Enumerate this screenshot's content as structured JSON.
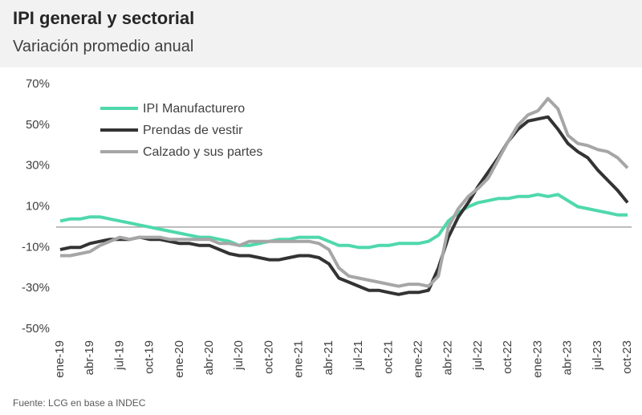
{
  "chart_data": {
    "type": "line",
    "title": "IPI general y sectorial",
    "subtitle": "Variación promedio anual",
    "source": "Fuente: LCG en base a INDEC",
    "categories": [
      "ene-19",
      null,
      null,
      "abr-19",
      null,
      null,
      "jul-19",
      null,
      null,
      "oct-19",
      null,
      null,
      "ene-20",
      null,
      null,
      "abr-20",
      null,
      null,
      "jul-20",
      null,
      null,
      "oct-20",
      null,
      null,
      "ene-21",
      null,
      null,
      "abr-21",
      null,
      null,
      "jul-21",
      null,
      null,
      "oct-21",
      null,
      null,
      "ene-22",
      null,
      null,
      "abr-22",
      null,
      null,
      "jul-22",
      null,
      null,
      "oct-22",
      null,
      null,
      "ene-23",
      null,
      null,
      "abr-23",
      null,
      null,
      "jul-23",
      null,
      null,
      "oct-23"
    ],
    "series": [
      {
        "name": "IPI Manufacturero",
        "color": "#4fd8ac",
        "values": [
          3,
          4,
          4,
          5,
          5,
          4,
          3,
          2,
          1,
          0,
          -1,
          -2,
          -3,
          -4,
          -5,
          -5,
          -6,
          -7,
          -9,
          -9,
          -8,
          -7,
          -6,
          -6,
          -5,
          -5,
          -5,
          -7,
          -9,
          -9,
          -10,
          -10,
          -9,
          -9,
          -8,
          -8,
          -8,
          -7,
          -4,
          3,
          7,
          10,
          12,
          13,
          14,
          14,
          15,
          15,
          16,
          15,
          16,
          13,
          10,
          9,
          8,
          7,
          6,
          6
        ]
      },
      {
        "name": "Prendas de vestir",
        "color": "#333333",
        "values": [
          -11,
          -10,
          -10,
          -8,
          -7,
          -6,
          -6,
          -6,
          -5,
          -6,
          -6,
          -7,
          -8,
          -8,
          -9,
          -9,
          -11,
          -13,
          -14,
          -14,
          -15,
          -16,
          -16,
          -15,
          -14,
          -14,
          -15,
          -18,
          -25,
          -27,
          -29,
          -31,
          -31,
          -32,
          -33,
          -32,
          -32,
          -31,
          -20,
          -5,
          5,
          12,
          20,
          27,
          34,
          42,
          48,
          52,
          53,
          54,
          48,
          41,
          37,
          34,
          28,
          23,
          18,
          12
        ]
      },
      {
        "name": "Calzado y sus partes",
        "color": "#a6a6a6",
        "values": [
          -14,
          -14,
          -13,
          -12,
          -9,
          -7,
          -5,
          -6,
          -5,
          -5,
          -5,
          -6,
          -6,
          -6,
          -6,
          -6,
          -8,
          -8,
          -9,
          -7,
          -7,
          -7,
          -7,
          -7,
          -7,
          -7,
          -8,
          -11,
          -20,
          -24,
          -25,
          -26,
          -27,
          -28,
          -29,
          -28,
          -28,
          -29,
          -24,
          0,
          9,
          15,
          19,
          24,
          33,
          42,
          50,
          55,
          57,
          63,
          58,
          45,
          41,
          40,
          38,
          37,
          34,
          29
        ]
      }
    ],
    "ylim": [
      -50,
      70
    ],
    "yticks": [
      {
        "value": -50,
        "label": "-50%"
      },
      {
        "value": -30,
        "label": "-30%"
      },
      {
        "value": -10,
        "label": "-10%"
      },
      {
        "value": 10,
        "label": "10%"
      },
      {
        "value": 30,
        "label": "30%"
      },
      {
        "value": 50,
        "label": "50%"
      },
      {
        "value": 70,
        "label": "70%"
      }
    ],
    "grid": false,
    "legend": "top-left"
  }
}
